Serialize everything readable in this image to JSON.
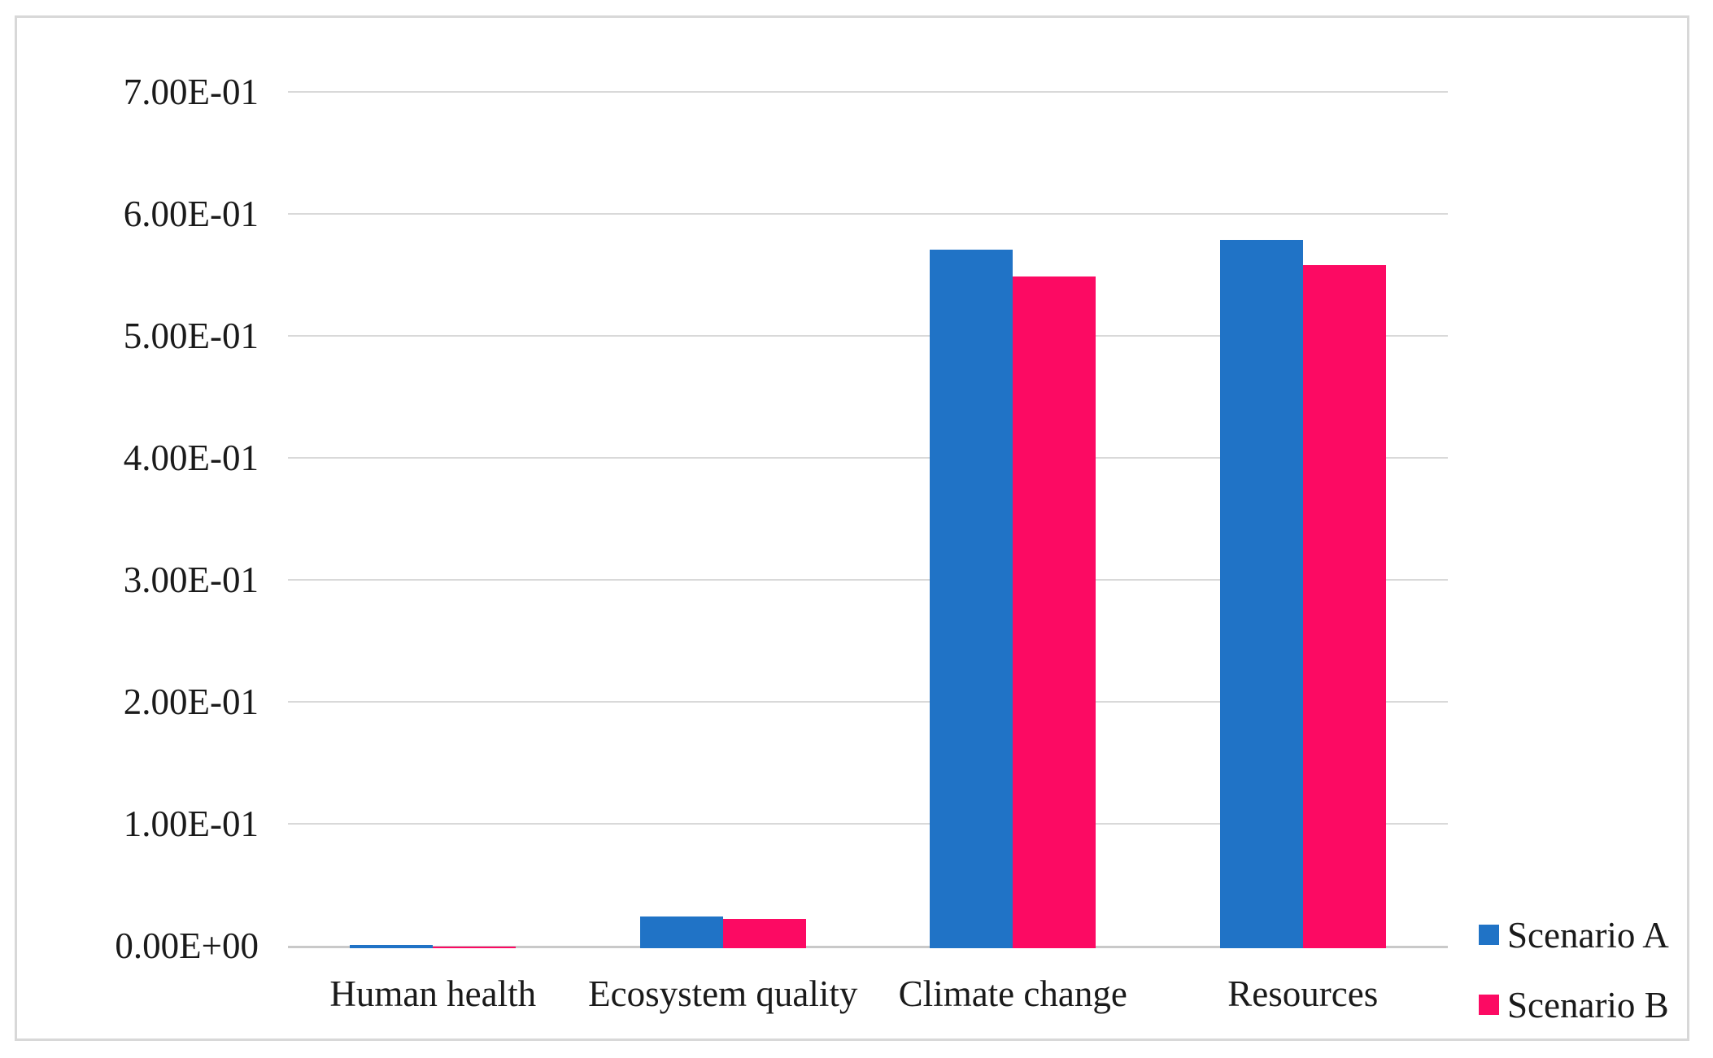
{
  "figure": {
    "background_color": "#ffffff",
    "border_color": "#d8d8d8"
  },
  "chart_data": {
    "type": "bar",
    "title": "",
    "xlabel": "",
    "ylabel": "",
    "categories": [
      "Human health",
      "Ecosystem quality",
      "Climate change",
      "Resources"
    ],
    "series": [
      {
        "name": "Scenario A",
        "color": "#2073c6",
        "values": [
          0.003,
          0.026,
          0.573,
          0.581
        ]
      },
      {
        "name": "Scenario B",
        "color": "#fc0a63",
        "values": [
          0.0015,
          0.024,
          0.551,
          0.56
        ]
      }
    ],
    "ylim": [
      0,
      0.7
    ],
    "y_ticks": [
      "0.00E+00",
      "1.00E-01",
      "2.00E-01",
      "3.00E-01",
      "4.00E-01",
      "5.00E-01",
      "6.00E-01",
      "7.00E-01"
    ],
    "grid": true,
    "gridline_color": "#d9d9d9",
    "axis_line_color": "#c9c9c9",
    "text_color": "#1a1a1a",
    "legend_position": "right-bottom"
  }
}
